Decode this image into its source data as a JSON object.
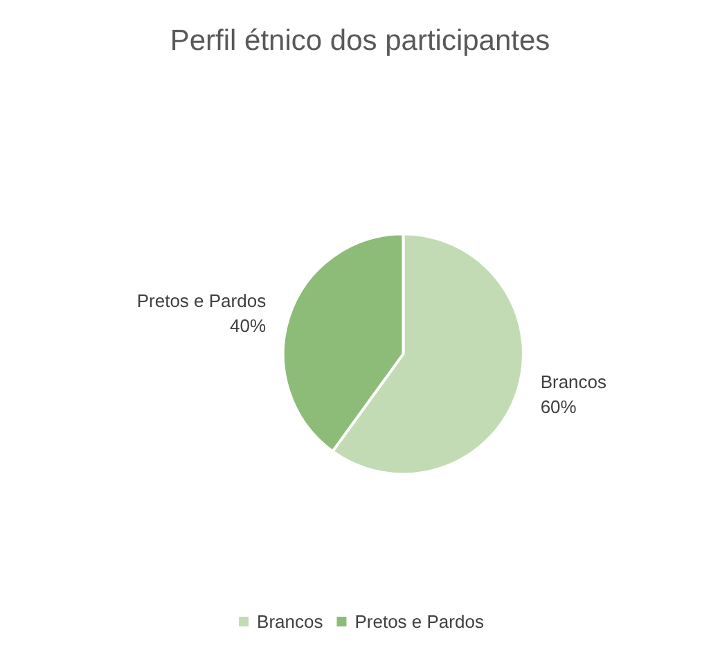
{
  "chart_data": {
    "type": "pie",
    "title": "Perfil étnico dos participantes",
    "categories": [
      "Brancos",
      "Pretos e Pardos"
    ],
    "values": [
      60,
      40
    ],
    "value_labels": [
      "60%",
      "40%"
    ],
    "colors": [
      "#c3dbb5",
      "#8dbb78"
    ],
    "legend": "bottom"
  }
}
